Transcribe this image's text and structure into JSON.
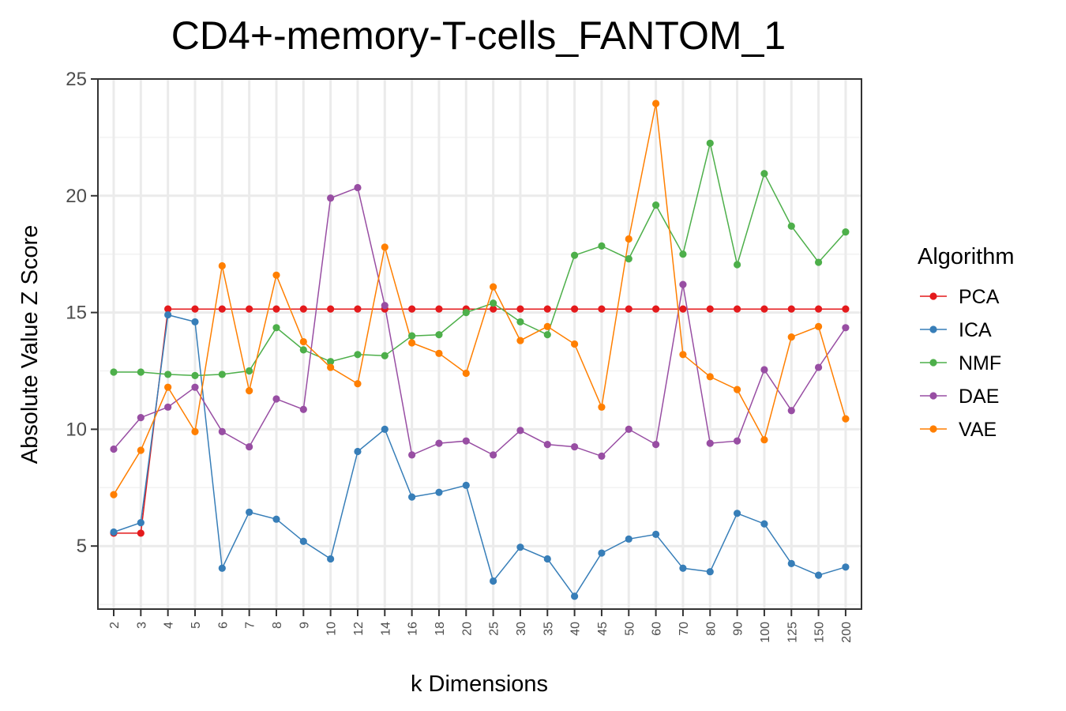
{
  "chart_data": {
    "type": "line",
    "title": "CD4+-memory-T-cells_FANTOM_1",
    "xlabel": "k Dimensions",
    "ylabel": "Absolute Value Z Score",
    "categories": [
      "2",
      "3",
      "4",
      "5",
      "6",
      "7",
      "8",
      "9",
      "10",
      "12",
      "14",
      "16",
      "18",
      "20",
      "25",
      "30",
      "35",
      "40",
      "45",
      "50",
      "60",
      "70",
      "80",
      "90",
      "100",
      "125",
      "150",
      "200"
    ],
    "ylim": [
      2.3,
      25
    ],
    "yticks": [
      "5",
      "10",
      "15",
      "20",
      "25"
    ],
    "grid": true,
    "legend": {
      "title": "Algorithm",
      "position": "right"
    },
    "series": [
      {
        "name": "PCA",
        "color": "#E41A1C",
        "values": [
          5.55,
          5.55,
          15.15,
          15.15,
          15.15,
          15.15,
          15.15,
          15.15,
          15.15,
          15.15,
          15.15,
          15.15,
          15.15,
          15.15,
          15.15,
          15.15,
          15.15,
          15.15,
          15.15,
          15.15,
          15.15,
          15.15,
          15.15,
          15.15,
          15.15,
          15.15,
          15.15,
          15.15
        ]
      },
      {
        "name": "ICA",
        "color": "#377EB8",
        "values": [
          5.6,
          6.0,
          14.9,
          14.6,
          4.05,
          6.45,
          6.15,
          5.2,
          4.45,
          9.05,
          10.0,
          7.1,
          7.3,
          7.6,
          3.5,
          4.95,
          4.45,
          2.85,
          4.7,
          5.3,
          5.5,
          4.05,
          3.9,
          6.4,
          5.95,
          4.25,
          3.75,
          4.1
        ]
      },
      {
        "name": "NMF",
        "color": "#4DAF4A",
        "values": [
          12.45,
          12.45,
          12.35,
          12.3,
          12.35,
          12.5,
          14.35,
          13.4,
          12.9,
          13.2,
          13.15,
          14.0,
          14.05,
          15.0,
          15.4,
          14.6,
          14.05,
          17.45,
          17.85,
          17.3,
          19.6,
          17.5,
          22.25,
          17.05,
          20.95,
          18.7,
          17.15,
          18.45
        ]
      },
      {
        "name": "DAE",
        "color": "#984EA3",
        "values": [
          9.15,
          10.5,
          10.95,
          11.8,
          9.9,
          9.25,
          11.3,
          10.85,
          19.9,
          20.35,
          15.3,
          8.9,
          9.4,
          9.5,
          8.9,
          9.95,
          9.35,
          9.25,
          8.85,
          10.0,
          9.35,
          16.2,
          9.4,
          9.5,
          12.55,
          10.8,
          12.65,
          14.35
        ]
      },
      {
        "name": "VAE",
        "color": "#FF7F00",
        "values": [
          7.2,
          9.1,
          11.8,
          9.9,
          17.0,
          11.65,
          16.6,
          13.75,
          12.65,
          11.95,
          17.8,
          13.7,
          13.25,
          12.4,
          16.1,
          13.8,
          14.4,
          13.65,
          10.95,
          18.15,
          23.95,
          13.2,
          12.25,
          11.7,
          9.55,
          13.95,
          14.4,
          10.45
        ]
      }
    ]
  }
}
